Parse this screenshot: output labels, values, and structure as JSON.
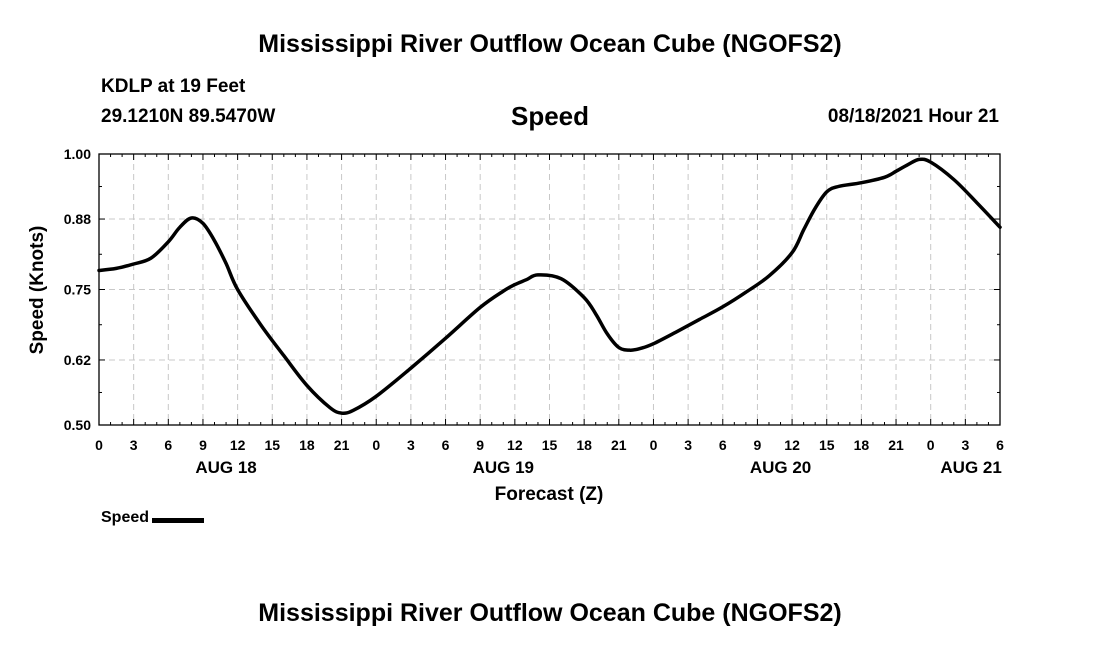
{
  "header": {
    "title": "Mississippi River Outflow Ocean Cube (NGOFS2)",
    "station": "KDLP at 19 Feet",
    "coordinates": "29.1210N  89.5470W",
    "variable": "Speed",
    "datetime": "08/18/2021 Hour 21"
  },
  "footer": {
    "title": "Mississippi River Outflow Ocean Cube (NGOFS2)"
  },
  "legend": {
    "label": "Speed",
    "color": "#000000"
  },
  "chart_data": {
    "type": "line",
    "title": "Speed",
    "xlabel": "Forecast (Z)",
    "ylabel": "Speed (Knots)",
    "xlim": [
      0,
      78
    ],
    "ylim": [
      0.5,
      1.0
    ],
    "yticks": [
      0.5,
      0.62,
      0.75,
      0.88,
      1.0
    ],
    "ytick_labels": [
      "0.50",
      "0.62",
      "0.75",
      "0.88",
      "1.00"
    ],
    "xticks": [
      0,
      3,
      6,
      9,
      12,
      15,
      18,
      21,
      24,
      27,
      30,
      33,
      36,
      39,
      42,
      45,
      48,
      51,
      54,
      57,
      60,
      63,
      66,
      69,
      72,
      75,
      78
    ],
    "xtick_labels": [
      "0",
      "3",
      "6",
      "9",
      "12",
      "15",
      "18",
      "21",
      "0",
      "3",
      "6",
      "9",
      "12",
      "15",
      "18",
      "21",
      "0",
      "3",
      "6",
      "9",
      "12",
      "15",
      "18",
      "21",
      "0",
      "3",
      "6"
    ],
    "day_labels": [
      {
        "x": 11,
        "label": "AUG 18"
      },
      {
        "x": 35,
        "label": "AUG 19"
      },
      {
        "x": 59,
        "label": "AUG 20"
      },
      {
        "x": 75.5,
        "label": "AUG 21"
      }
    ],
    "grid": true,
    "series": [
      {
        "name": "Speed",
        "x": [
          0,
          1.5,
          3,
          4.5,
          6,
          7,
          8,
          9,
          10,
          11,
          12,
          14,
          16,
          18,
          20,
          21,
          22,
          24,
          27,
          30,
          33,
          35,
          36,
          37,
          38,
          40,
          42,
          43,
          44,
          45,
          46,
          47,
          48,
          50,
          52,
          54,
          56,
          58,
          60,
          61,
          62,
          63,
          64,
          66,
          68,
          69,
          70,
          71,
          72,
          74,
          76,
          78
        ],
        "values": [
          0.785,
          0.789,
          0.797,
          0.808,
          0.838,
          0.865,
          0.882,
          0.872,
          0.84,
          0.798,
          0.75,
          0.685,
          0.628,
          0.573,
          0.532,
          0.522,
          0.527,
          0.553,
          0.605,
          0.66,
          0.717,
          0.747,
          0.759,
          0.768,
          0.777,
          0.77,
          0.735,
          0.705,
          0.668,
          0.643,
          0.638,
          0.642,
          0.65,
          0.672,
          0.695,
          0.718,
          0.745,
          0.775,
          0.818,
          0.86,
          0.9,
          0.93,
          0.94,
          0.947,
          0.957,
          0.968,
          0.98,
          0.99,
          0.985,
          0.953,
          0.91,
          0.865
        ]
      }
    ]
  }
}
